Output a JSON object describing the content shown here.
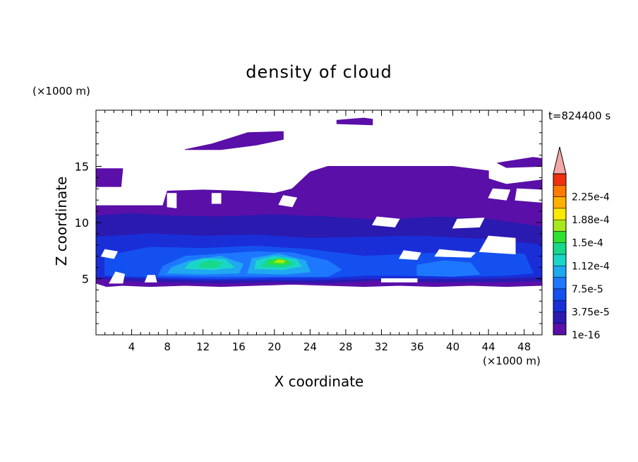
{
  "chart_data": {
    "type": "heatmap",
    "title": "density of cloud",
    "xlabel": "X coordinate",
    "ylabel": "Z coordinate",
    "x_unit": "(×1000 m)",
    "y_unit": "(×1000 m)",
    "time_label": "t=824400 s",
    "xlim": [
      0,
      50
    ],
    "ylim": [
      0,
      20
    ],
    "x_ticks": [
      "4",
      "8",
      "12",
      "16",
      "20",
      "24",
      "28",
      "32",
      "36",
      "40",
      "44",
      "48"
    ],
    "y_ticks": [
      "5",
      "10",
      "15"
    ],
    "colorbar": {
      "levels": [
        1e-16,
        1.875e-05,
        3.75e-05,
        5.625e-05,
        7.5e-05,
        9.375e-05,
        0.0001125,
        0.00013125,
        0.00015,
        0.00016875,
        0.0001875,
        0.00020625,
        0.000225,
        0.00024375
      ],
      "labels": [
        "1e-16",
        "3.75e-5",
        "7.5e-5",
        "1.12e-4",
        "1.5e-4",
        "1.88e-4",
        "2.25e-4"
      ],
      "colors": [
        "#5a0fa8",
        "#2a1ab0",
        "#1a2ed8",
        "#1450f0",
        "#1e78ff",
        "#20a8f0",
        "#1ad6c8",
        "#18d88a",
        "#30e030",
        "#a8e81e",
        "#ffe800",
        "#ffb000",
        "#ff7a00",
        "#f03010"
      ],
      "extend_color": "#f4a8a8"
    },
    "regions": [
      {
        "level": 0,
        "polygon": [
          [
            0.0,
            4.6
          ],
          [
            1.2,
            4.3
          ],
          [
            3,
            4.4
          ],
          [
            6,
            4.3
          ],
          [
            10,
            4.4
          ],
          [
            14,
            4.3
          ],
          [
            18,
            4.4
          ],
          [
            22,
            4.5
          ],
          [
            26,
            4.4
          ],
          [
            30,
            4.3
          ],
          [
            34,
            4.4
          ],
          [
            38,
            4.3
          ],
          [
            42,
            4.4
          ],
          [
            46,
            4.3
          ],
          [
            50,
            4.4
          ],
          [
            50,
            13.8
          ],
          [
            48,
            13.6
          ],
          [
            46,
            13.4
          ],
          [
            44,
            13.9
          ],
          [
            44,
            14.6
          ],
          [
            40,
            15.0
          ],
          [
            36,
            15.0
          ],
          [
            32,
            15.0
          ],
          [
            28,
            15.0
          ],
          [
            26,
            15.0
          ],
          [
            24,
            14.5
          ],
          [
            22,
            13.0
          ],
          [
            20,
            12.6
          ],
          [
            16,
            12.8
          ],
          [
            12,
            12.9
          ],
          [
            8,
            12.8
          ],
          [
            7.5,
            11.5
          ],
          [
            4,
            11.5
          ],
          [
            0,
            11.5
          ]
        ]
      },
      {
        "level": 0,
        "polygon": [
          [
            0,
            13.2
          ],
          [
            2.8,
            13.2
          ],
          [
            3,
            14.8
          ],
          [
            0,
            14.8
          ]
        ]
      },
      {
        "level": 0,
        "polygon": [
          [
            10,
            16.5
          ],
          [
            13,
            17.0
          ],
          [
            15,
            17.5
          ],
          [
            17,
            18.0
          ],
          [
            21,
            18.1
          ],
          [
            21,
            17.4
          ],
          [
            18,
            16.9
          ],
          [
            14,
            16.5
          ]
        ]
      },
      {
        "level": 0,
        "polygon": [
          [
            27,
            19.1
          ],
          [
            30,
            19.3
          ],
          [
            31,
            19.2
          ],
          [
            31,
            18.7
          ],
          [
            27,
            18.8
          ]
        ]
      },
      {
        "level": 0,
        "polygon": [
          [
            45,
            15.3
          ],
          [
            49,
            15.8
          ],
          [
            50,
            15.7
          ],
          [
            50,
            15.0
          ],
          [
            46,
            14.9
          ]
        ]
      },
      {
        "level": 1,
        "polygon": [
          [
            0,
            5.0
          ],
          [
            4,
            4.8
          ],
          [
            8,
            4.7
          ],
          [
            14,
            4.6
          ],
          [
            20,
            4.7
          ],
          [
            26,
            4.6
          ],
          [
            32,
            4.9
          ],
          [
            38,
            4.7
          ],
          [
            44,
            4.7
          ],
          [
            50,
            4.8
          ],
          [
            50,
            9.6
          ],
          [
            44,
            10.3
          ],
          [
            38,
            10.5
          ],
          [
            32,
            10.2
          ],
          [
            26,
            10.5
          ],
          [
            20,
            10.7
          ],
          [
            14,
            10.5
          ],
          [
            8,
            10.6
          ],
          [
            4,
            10.8
          ],
          [
            0,
            10.6
          ]
        ]
      },
      {
        "level": 2,
        "polygon": [
          [
            0,
            5.2
          ],
          [
            6,
            5.0
          ],
          [
            12,
            4.9
          ],
          [
            18,
            4.9
          ],
          [
            24,
            4.9
          ],
          [
            30,
            5.0
          ],
          [
            36,
            5.0
          ],
          [
            42,
            5.0
          ],
          [
            48,
            5.1
          ],
          [
            50,
            5.2
          ],
          [
            50,
            8.0
          ],
          [
            44,
            8.5
          ],
          [
            36,
            8.8
          ],
          [
            30,
            8.7
          ],
          [
            24,
            8.6
          ],
          [
            18,
            8.9
          ],
          [
            12,
            8.8
          ],
          [
            6,
            9.0
          ],
          [
            0,
            8.7
          ]
        ]
      },
      {
        "level": 3,
        "polygon": [
          [
            1,
            5.3
          ],
          [
            8,
            5.1
          ],
          [
            14,
            5.0
          ],
          [
            20,
            5.1
          ],
          [
            26,
            5.1
          ],
          [
            30,
            5.3
          ],
          [
            34,
            5.3
          ],
          [
            40,
            5.2
          ],
          [
            46,
            5.3
          ],
          [
            49,
            5.5
          ],
          [
            48,
            7.2
          ],
          [
            42,
            7.4
          ],
          [
            36,
            7.2
          ],
          [
            30,
            7.0
          ],
          [
            24,
            7.6
          ],
          [
            18,
            7.9
          ],
          [
            12,
            7.7
          ],
          [
            6,
            7.8
          ],
          [
            1,
            7.0
          ]
        ]
      },
      {
        "level": 4,
        "polygon": [
          [
            7,
            5.3
          ],
          [
            12,
            5.2
          ],
          [
            17,
            5.2
          ],
          [
            22,
            5.2
          ],
          [
            26,
            5.2
          ],
          [
            27.5,
            5.8
          ],
          [
            26,
            6.6
          ],
          [
            22,
            7.3
          ],
          [
            18,
            7.4
          ],
          [
            14,
            7.2
          ],
          [
            10,
            7.0
          ],
          [
            7.5,
            6.1
          ]
        ]
      },
      {
        "level": 4,
        "polygon": [
          [
            36,
            5.3
          ],
          [
            40,
            5.2
          ],
          [
            43,
            5.4
          ],
          [
            42,
            6.4
          ],
          [
            39,
            6.6
          ],
          [
            36,
            6.2
          ]
        ]
      },
      {
        "level": 5,
        "polygon": [
          [
            8,
            5.5
          ],
          [
            12,
            5.4
          ],
          [
            16,
            5.5
          ],
          [
            16.5,
            6.3
          ],
          [
            14,
            7.0
          ],
          [
            10.5,
            6.6
          ],
          [
            8.5,
            6.0
          ]
        ]
      },
      {
        "level": 5,
        "polygon": [
          [
            17,
            5.5
          ],
          [
            21,
            5.4
          ],
          [
            24,
            5.6
          ],
          [
            23.5,
            6.6
          ],
          [
            20.5,
            7.2
          ],
          [
            17.5,
            6.8
          ]
        ]
      },
      {
        "level": 6,
        "polygon": [
          [
            10,
            5.9
          ],
          [
            13,
            5.8
          ],
          [
            15.5,
            6.0
          ],
          [
            14.5,
            6.7
          ],
          [
            12,
            6.8
          ],
          [
            10.5,
            6.4
          ]
        ]
      },
      {
        "level": 6,
        "polygon": [
          [
            17.8,
            5.9
          ],
          [
            21,
            5.8
          ],
          [
            23,
            6.1
          ],
          [
            22.5,
            6.7
          ],
          [
            20,
            7.0
          ],
          [
            18,
            6.6
          ]
        ]
      },
      {
        "level": 7,
        "polygon": [
          [
            11.5,
            6.0
          ],
          [
            13.5,
            6.0
          ],
          [
            14.2,
            6.4
          ],
          [
            12.8,
            6.6
          ],
          [
            11.8,
            6.4
          ]
        ]
      },
      {
        "level": 7,
        "polygon": [
          [
            18.5,
            6.1
          ],
          [
            21,
            6.0
          ],
          [
            22.3,
            6.3
          ],
          [
            21,
            6.8
          ],
          [
            19.2,
            6.7
          ]
        ]
      },
      {
        "level": 8,
        "polygon": [
          [
            19.4,
            6.3
          ],
          [
            21,
            6.25
          ],
          [
            21.8,
            6.5
          ],
          [
            20.6,
            6.8
          ],
          [
            19.6,
            6.6
          ]
        ]
      },
      {
        "level": 9,
        "polygon": [
          [
            20.0,
            6.45
          ],
          [
            21.0,
            6.4
          ],
          [
            21.2,
            6.6
          ],
          [
            20.4,
            6.7
          ]
        ]
      }
    ],
    "gaps": [
      {
        "polygon": [
          [
            1.5,
            4.6
          ],
          [
            3.0,
            4.6
          ],
          [
            3.2,
            5.4
          ],
          [
            2.2,
            5.6
          ]
        ]
      },
      {
        "polygon": [
          [
            5.5,
            4.7
          ],
          [
            6.8,
            4.7
          ],
          [
            6.6,
            5.3
          ],
          [
            5.8,
            5.3
          ]
        ]
      },
      {
        "polygon": [
          [
            32,
            4.7
          ],
          [
            36,
            4.7
          ],
          [
            36,
            5.0
          ],
          [
            32,
            5.0
          ]
        ]
      },
      {
        "polygon": [
          [
            0.6,
            7.0
          ],
          [
            2.0,
            6.8
          ],
          [
            2.4,
            7.4
          ],
          [
            1.0,
            7.6
          ]
        ]
      },
      {
        "polygon": [
          [
            34,
            6.8
          ],
          [
            36,
            6.7
          ],
          [
            36.4,
            7.3
          ],
          [
            34.5,
            7.5
          ]
        ]
      },
      {
        "polygon": [
          [
            38,
            7.0
          ],
          [
            42,
            6.9
          ],
          [
            42.5,
            7.3
          ],
          [
            38.5,
            7.6
          ]
        ]
      },
      {
        "polygon": [
          [
            43,
            7.4
          ],
          [
            47,
            7.2
          ],
          [
            47,
            8.6
          ],
          [
            44,
            8.8
          ]
        ]
      },
      {
        "polygon": [
          [
            40,
            9.5
          ],
          [
            43,
            9.6
          ],
          [
            43.5,
            10.4
          ],
          [
            40.5,
            10.3
          ]
        ]
      },
      {
        "polygon": [
          [
            31,
            9.8
          ],
          [
            33.5,
            9.6
          ],
          [
            34,
            10.3
          ],
          [
            31.5,
            10.5
          ]
        ]
      },
      {
        "polygon": [
          [
            44,
            12.2
          ],
          [
            46,
            12.0
          ],
          [
            46.4,
            12.9
          ],
          [
            44.5,
            13.0
          ]
        ]
      },
      {
        "polygon": [
          [
            47,
            12.0
          ],
          [
            50,
            11.8
          ],
          [
            50,
            12.9
          ],
          [
            47.2,
            13.0
          ]
        ]
      },
      {
        "polygon": [
          [
            8,
            11.4
          ],
          [
            9,
            11.3
          ],
          [
            9,
            12.6
          ],
          [
            8,
            12.6
          ]
        ]
      },
      {
        "polygon": [
          [
            13,
            11.7
          ],
          [
            14,
            11.7
          ],
          [
            14,
            12.6
          ],
          [
            13,
            12.6
          ]
        ]
      },
      {
        "polygon": [
          [
            20.5,
            11.6
          ],
          [
            22,
            11.4
          ],
          [
            22.5,
            12.2
          ],
          [
            21,
            12.4
          ]
        ]
      }
    ]
  }
}
